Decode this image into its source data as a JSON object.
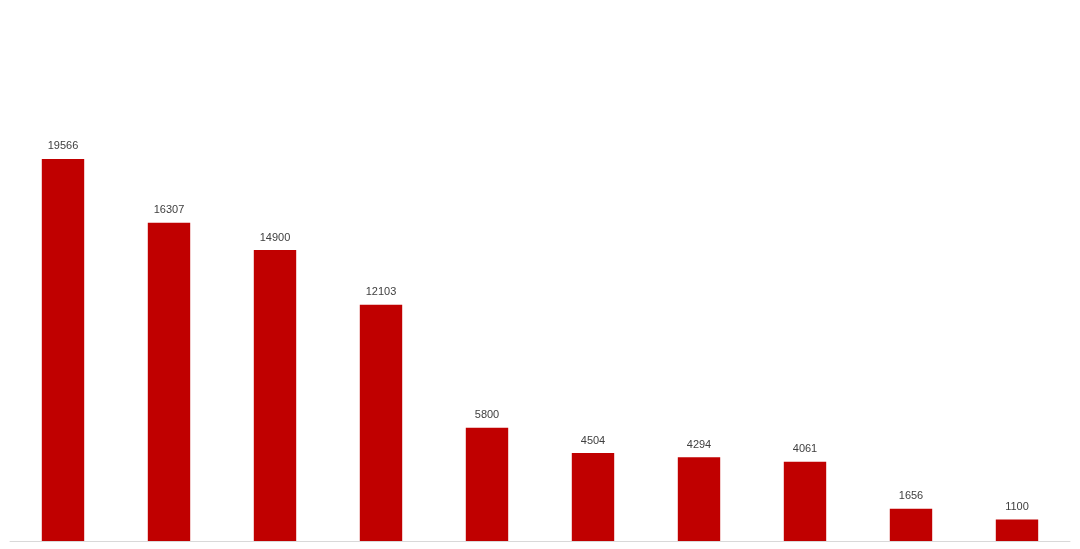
{
  "chart_data": {
    "type": "bar",
    "categories": [
      null,
      null,
      null,
      null,
      null,
      null,
      null,
      null,
      null,
      null
    ],
    "values": [
      19566,
      16307,
      14900,
      12103,
      5800,
      4504,
      4294,
      4061,
      1656,
      1100
    ],
    "color": "#c00000",
    "data_labels": true
  }
}
